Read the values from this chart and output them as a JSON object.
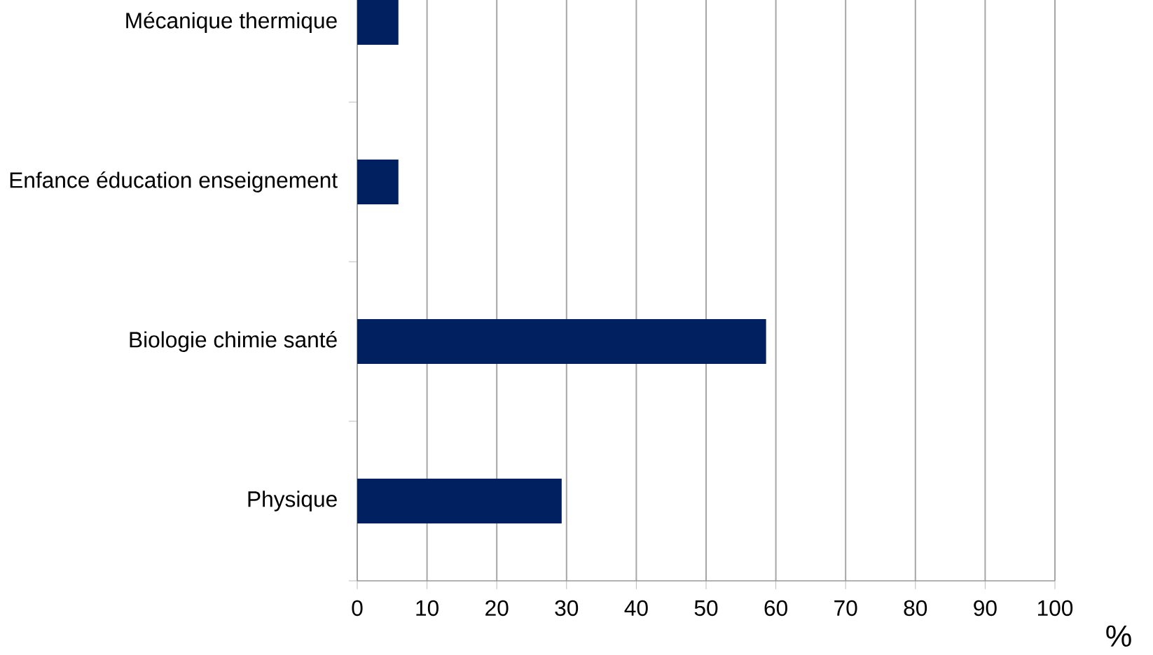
{
  "chart_data": {
    "type": "bar",
    "orientation": "horizontal",
    "xlabel": "%",
    "categories": [
      "Mécanique thermique",
      "Enfance éducation enseignement",
      "Biologie chimie santé",
      "Physique"
    ],
    "values": [
      5.9,
      5.9,
      58.6,
      29.3
    ],
    "color": "#002060",
    "xlim": [
      0,
      100
    ],
    "xticks": [
      0,
      10,
      20,
      30,
      40,
      50,
      60,
      70,
      80,
      90,
      100
    ],
    "grid": "x"
  }
}
